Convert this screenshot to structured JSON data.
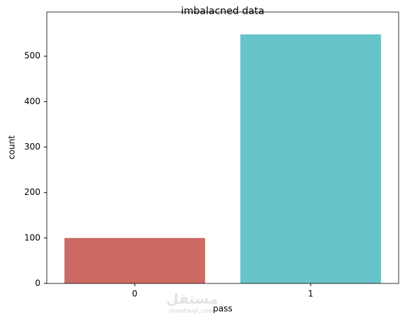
{
  "chart_data": {
    "type": "bar",
    "title": "imbalacned data",
    "x_label": "pass",
    "y_label": "count",
    "categories": [
      "0",
      "1"
    ],
    "values": [
      100,
      548
    ],
    "colors": [
      "#cc6b63",
      "#67c4cb"
    ],
    "ylim": [
      0,
      597
    ],
    "yticks": [
      0,
      100,
      200,
      300,
      400,
      500
    ],
    "grid": false
  },
  "watermark": {
    "logo": "مستقل",
    "site": "mostaql.com"
  }
}
